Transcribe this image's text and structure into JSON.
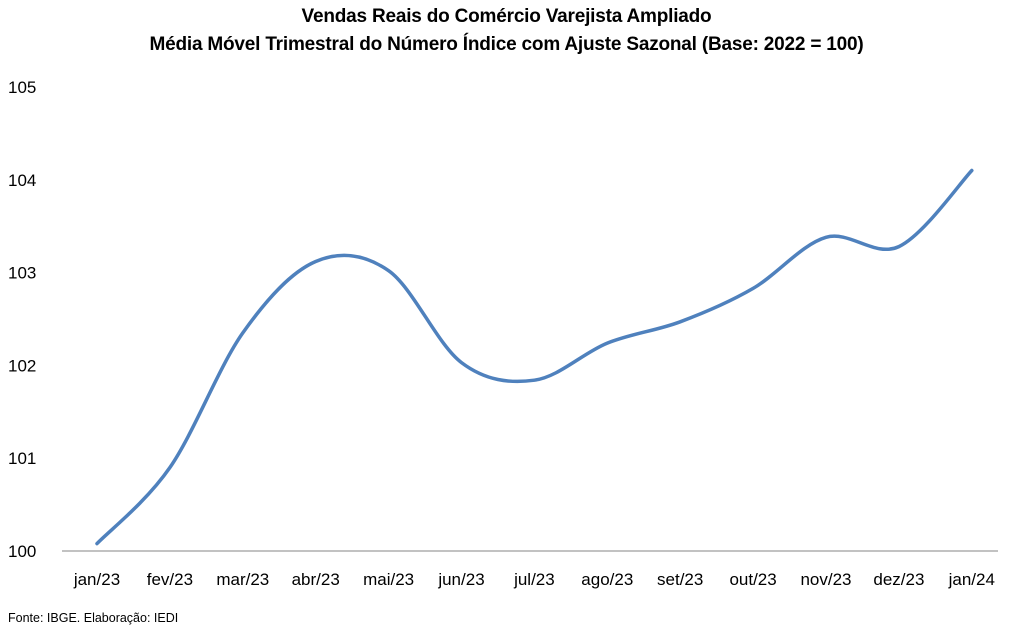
{
  "chart_data": {
    "type": "line",
    "title": "Vendas Reais do Comércio Varejista Ampliado",
    "subtitle": "Média Móvel Trimestral do Número Índice com Ajuste Sazonal (Base: 2022 = 100)",
    "categories": [
      "jan/23",
      "fev/23",
      "mar/23",
      "abr/23",
      "mai/23",
      "jun/23",
      "jul/23",
      "ago/23",
      "set/23",
      "out/23",
      "nov/23",
      "dez/23",
      "jan/24"
    ],
    "series": [
      {
        "values": [
          100.08,
          100.9,
          102.35,
          103.12,
          103.02,
          102.03,
          101.84,
          102.24,
          102.47,
          102.83,
          103.38,
          103.28,
          104.1
        ]
      }
    ],
    "ylim": [
      100,
      105
    ],
    "yticks": [
      "100",
      "101",
      "102",
      "103",
      "104",
      "105"
    ],
    "xlabel": "",
    "ylabel": "",
    "grid": false,
    "line_color": "#4f81bd"
  },
  "footer": {
    "source": "Fonte: IBGE. Elaboração: IEDI"
  }
}
